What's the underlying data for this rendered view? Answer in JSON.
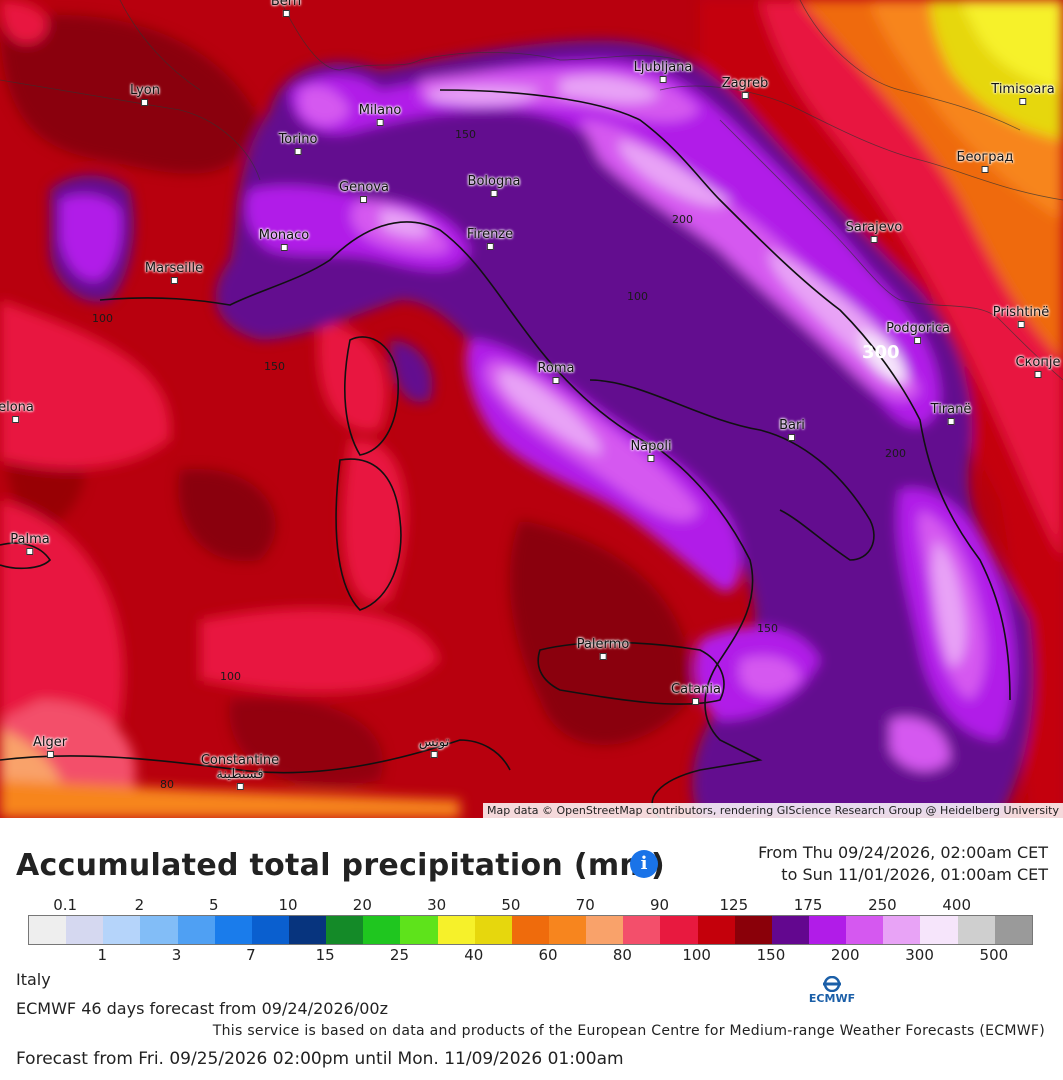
{
  "map": {
    "attribution": "Map data © OpenStreetMap contributors, rendering GIScience Research Group @ Heidelberg University",
    "cities": [
      {
        "id": "bern",
        "name": "Bern"
      },
      {
        "id": "lyon",
        "name": "Lyon"
      },
      {
        "id": "milano",
        "name": "Milano"
      },
      {
        "id": "torino",
        "name": "Torino"
      },
      {
        "id": "genova",
        "name": "Genova"
      },
      {
        "id": "bologna",
        "name": "Bologna"
      },
      {
        "id": "firenze",
        "name": "Firenze"
      },
      {
        "id": "monaco",
        "name": "Monaco"
      },
      {
        "id": "marseille",
        "name": "Marseille"
      },
      {
        "id": "ljubljana",
        "name": "Ljubljana"
      },
      {
        "id": "zagreb",
        "name": "Zagreb"
      },
      {
        "id": "timisoara",
        "name": "Timisoara"
      },
      {
        "id": "beograd",
        "name": "Београд"
      },
      {
        "id": "sarajevo",
        "name": "Sarajevo"
      },
      {
        "id": "podgorica",
        "name": "Podgorica"
      },
      {
        "id": "prishtine",
        "name": "Prishtinë"
      },
      {
        "id": "skopje",
        "name": "Скопје"
      },
      {
        "id": "tirane",
        "name": "Tiranë"
      },
      {
        "id": "roma",
        "name": "Roma"
      },
      {
        "id": "napoli",
        "name": "Napoli"
      },
      {
        "id": "bari",
        "name": "Bari"
      },
      {
        "id": "palermo",
        "name": "Palermo"
      },
      {
        "id": "catania",
        "name": "Catania"
      },
      {
        "id": "barcelona",
        "name": "elona"
      },
      {
        "id": "palma",
        "name": "Palma"
      },
      {
        "id": "alger",
        "name": "Alger"
      },
      {
        "id": "constantine",
        "name": "Constantine\nقسنطينة"
      },
      {
        "id": "tunis",
        "name": "تونس"
      }
    ],
    "isolines": [
      "150",
      "100",
      "150",
      "200",
      "300",
      "100",
      "200",
      "150",
      "100",
      "80",
      "100"
    ]
  },
  "legend": {
    "title": "Accumulated total precipitation (mm)",
    "info_icon": "info-icon",
    "range_from": "From Thu 09/24/2026, 02:00am CET",
    "range_to": "to Sun 11/01/2026, 01:00am CET",
    "top_ticks": [
      "0.1",
      "2",
      "5",
      "10",
      "20",
      "30",
      "50",
      "70",
      "90",
      "125",
      "175",
      "250",
      "400"
    ],
    "bottom_ticks": [
      "1",
      "3",
      "7",
      "15",
      "25",
      "40",
      "60",
      "80",
      "100",
      "150",
      "200",
      "300",
      "500"
    ],
    "colors": [
      "#eeeeee",
      "#d5d8f0",
      "#b5d4fa",
      "#82bdf7",
      "#4fa0f3",
      "#1a7ceb",
      "#0a5fcf",
      "#07347e",
      "#148a28",
      "#1fc61f",
      "#5ee31b",
      "#f6f12a",
      "#e6d70d",
      "#ef6b0c",
      "#f7851e",
      "#f9a26a",
      "#f34f6b",
      "#e8193f",
      "#c4000b",
      "#8a0009",
      "#63078f",
      "#b11ce8",
      "#d558f0",
      "#e8a3f6",
      "#f6e5fb",
      "#cfcfcf",
      "#9a9a9a"
    ]
  },
  "footer": {
    "region": "Italy",
    "model": "ECMWF 46 days forecast from 09/24/2026/00z",
    "logo_text": "ECMWF",
    "disclaimer": "This service is based on data and products of the European Centre for Medium-range Weather Forecasts (ECMWF)",
    "forecast_range": "Forecast from Fri. 09/25/2026 02:00pm until Mon. 11/09/2026 01:00am"
  }
}
